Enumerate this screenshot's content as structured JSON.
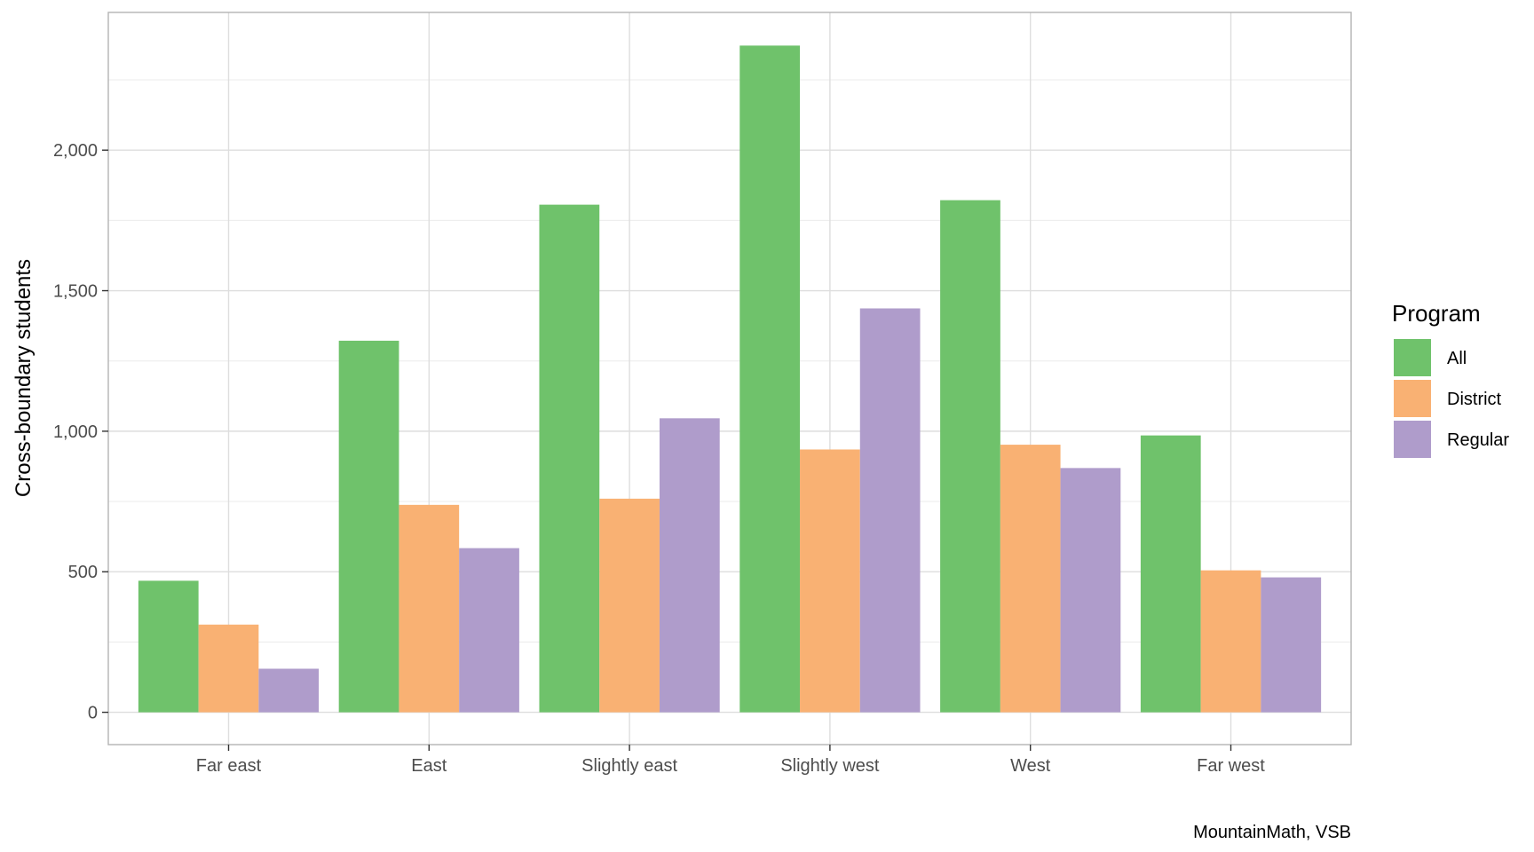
{
  "chart_data": {
    "type": "bar",
    "categories": [
      "Far east",
      "East",
      "Slightly east",
      "Slightly west",
      "West",
      "Far west"
    ],
    "series": [
      {
        "name": "All",
        "color": "#6FC26B",
        "values": [
          468,
          1322,
          1806,
          2372,
          1822,
          985
        ]
      },
      {
        "name": "District",
        "color": "#F9B173",
        "values": [
          312,
          738,
          760,
          935,
          952,
          505
        ]
      },
      {
        "name": "Regular",
        "color": "#AF9CCB",
        "values": [
          155,
          584,
          1046,
          1437,
          869,
          480
        ]
      }
    ],
    "ylabel": "Cross-boundary students",
    "xlabel": "",
    "ylim": [
      -115,
      2490
    ],
    "y_ticks": [
      0,
      500,
      1000,
      1500,
      2000
    ],
    "y_tick_labels": [
      "0",
      "500",
      "1,000",
      "1,500",
      "2,000"
    ],
    "legend_title": "Program",
    "legend_position": "right",
    "grid": true,
    "caption": "MountainMath, VSB"
  }
}
